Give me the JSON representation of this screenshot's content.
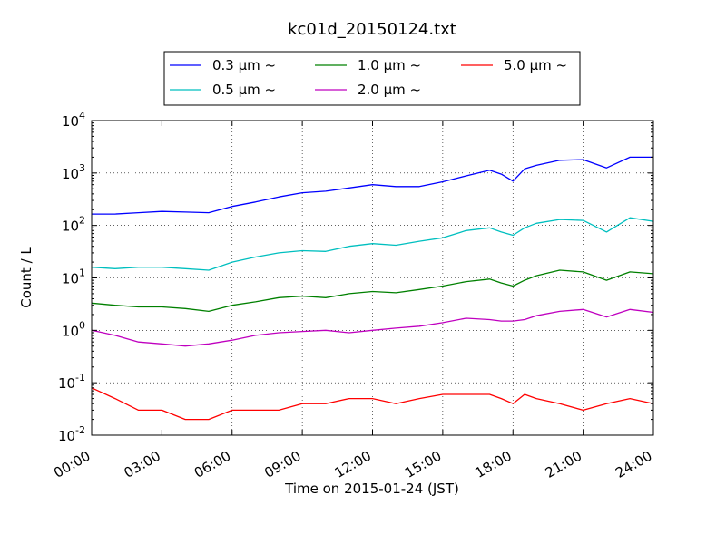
{
  "chart_data": {
    "type": "line",
    "title": "kc01d_20150124.txt",
    "xlabel": "Time on 2015-01-24 (JST)",
    "ylabel": "Count / L",
    "xscale": "linear",
    "yscale": "log",
    "xlim": [
      "00:00",
      "24:00"
    ],
    "ylim": [
      0.01,
      10000
    ],
    "grid": true,
    "legend_position": "top-center",
    "x_ticks": [
      "00:00",
      "03:00",
      "06:00",
      "09:00",
      "12:00",
      "15:00",
      "18:00",
      "21:00",
      "24:00"
    ],
    "y_ticks": [
      {
        "base": "10",
        "exp": "-2",
        "value": 0.01
      },
      {
        "base": "10",
        "exp": "-1",
        "value": 0.1
      },
      {
        "base": "10",
        "exp": "0",
        "value": 1
      },
      {
        "base": "10",
        "exp": "1",
        "value": 10
      },
      {
        "base": "10",
        "exp": "2",
        "value": 100
      },
      {
        "base": "10",
        "exp": "3",
        "value": 1000
      },
      {
        "base": "10",
        "exp": "4",
        "value": 10000
      }
    ],
    "x": [
      "00:00",
      "01:00",
      "02:00",
      "03:00",
      "04:00",
      "05:00",
      "06:00",
      "07:00",
      "08:00",
      "09:00",
      "10:00",
      "11:00",
      "12:00",
      "13:00",
      "14:00",
      "15:00",
      "16:00",
      "17:00",
      "17:30",
      "18:00",
      "18:30",
      "19:00",
      "20:00",
      "21:00",
      "22:00",
      "23:00",
      "24:00"
    ],
    "series": [
      {
        "name": "0.3 μm ~",
        "color": "#0000ff",
        "values": [
          165,
          165,
          175,
          185,
          180,
          175,
          230,
          280,
          350,
          420,
          450,
          520,
          600,
          550,
          550,
          680,
          880,
          1130,
          950,
          700,
          1200,
          1400,
          1750,
          1800,
          1250,
          2000,
          2000
        ]
      },
      {
        "name": "0.5 μm ~",
        "color": "#00bfbf",
        "values": [
          16,
          15,
          16,
          16,
          15,
          14,
          20,
          25,
          30,
          33,
          32,
          40,
          45,
          42,
          50,
          58,
          80,
          90,
          75,
          65,
          90,
          110,
          130,
          125,
          75,
          140,
          120
        ]
      },
      {
        "name": "1.0 μm ~",
        "color": "#008000",
        "values": [
          3.3,
          3.0,
          2.8,
          2.8,
          2.6,
          2.3,
          3.0,
          3.5,
          4.2,
          4.5,
          4.2,
          5.0,
          5.5,
          5.2,
          6.0,
          7.0,
          8.5,
          9.5,
          8.0,
          7.0,
          9.0,
          11,
          14,
          13,
          9,
          13,
          12
        ]
      },
      {
        "name": "2.0 μm ~",
        "color": "#bf00bf",
        "values": [
          1.0,
          0.8,
          0.6,
          0.55,
          0.5,
          0.55,
          0.65,
          0.8,
          0.9,
          0.95,
          1.0,
          0.9,
          1.0,
          1.1,
          1.2,
          1.4,
          1.7,
          1.6,
          1.5,
          1.5,
          1.6,
          1.9,
          2.3,
          2.5,
          1.8,
          2.5,
          2.2
        ]
      },
      {
        "name": "5.0 μm ~",
        "color": "#ff0000",
        "values": [
          0.08,
          0.05,
          0.03,
          0.03,
          0.02,
          0.02,
          0.03,
          0.03,
          0.03,
          0.04,
          0.04,
          0.05,
          0.05,
          0.04,
          0.05,
          0.06,
          0.06,
          0.06,
          0.05,
          0.04,
          0.06,
          0.05,
          0.04,
          0.03,
          0.04,
          0.05,
          0.04
        ]
      }
    ]
  }
}
